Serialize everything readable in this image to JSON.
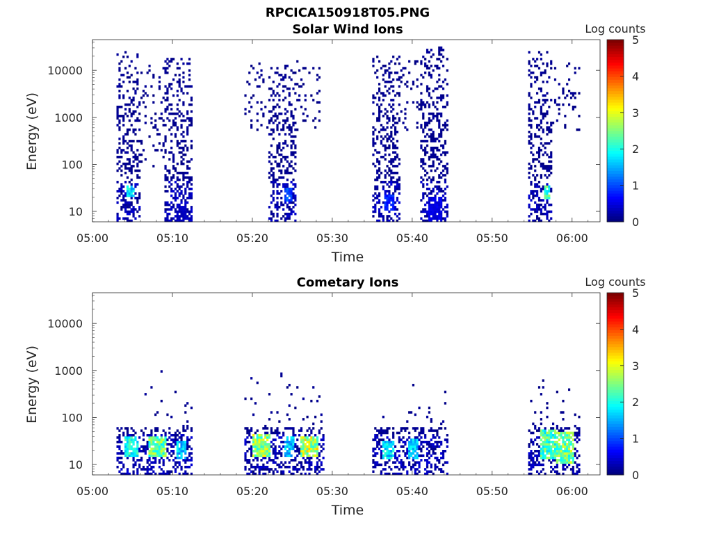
{
  "figure_title": "RPCICA150918T05.PNG",
  "chart_data": [
    {
      "type": "heatmap",
      "title": "Solar Wind Ions",
      "xlabel": "Time",
      "ylabel": "Energy (eV)",
      "x_ticks": [
        "05:00",
        "05:10",
        "05:20",
        "05:30",
        "05:40",
        "05:50",
        "06:00"
      ],
      "x_range_minutes": [
        0,
        63.5
      ],
      "y_scale": "log",
      "y_ticks": [
        "10",
        "100",
        "1000",
        "10000"
      ],
      "y_range": [
        6,
        45000
      ],
      "colorbar": {
        "label": "Log counts",
        "ticks": [
          "0",
          "1",
          "2",
          "3",
          "4",
          "5"
        ],
        "range": [
          0,
          5
        ],
        "colormap": "jet"
      },
      "bursts": [
        {
          "t_start": 3.0,
          "t_end": 6.0,
          "e_low": 6,
          "e_high": 25000,
          "core_low": 20,
          "core_high": 35,
          "core_peak": 2.2,
          "core_t": [
            4.2,
            5.0
          ]
        },
        {
          "t_start": 6.0,
          "t_end": 9.0,
          "e_low": 80,
          "e_high": 12000,
          "sparse": true
        },
        {
          "t_start": 9.0,
          "t_end": 12.5,
          "e_low": 6,
          "e_high": 18000,
          "core_low": 6,
          "core_high": 14,
          "core_peak": 0.4,
          "core_t": [
            10.5,
            11.5
          ]
        },
        {
          "t_start": 19.0,
          "t_end": 22.0,
          "e_low": 500,
          "e_high": 15000,
          "sparse": true
        },
        {
          "t_start": 22.0,
          "t_end": 25.5,
          "e_low": 6,
          "e_high": 13000,
          "core_low": 15,
          "core_high": 30,
          "core_peak": 1.2,
          "core_t": [
            24.0,
            24.8
          ]
        },
        {
          "t_start": 25.5,
          "t_end": 28.5,
          "e_low": 500,
          "e_high": 15000,
          "sparse": true
        },
        {
          "t_start": 35.0,
          "t_end": 38.5,
          "e_low": 6,
          "e_high": 20000,
          "core_low": 10,
          "core_high": 22,
          "core_peak": 1.0,
          "core_t": [
            36.5,
            37.5
          ]
        },
        {
          "t_start": 38.5,
          "t_end": 41.0,
          "e_low": 500,
          "e_high": 15000,
          "sparse": true
        },
        {
          "t_start": 41.0,
          "t_end": 44.5,
          "e_low": 6,
          "e_high": 35000,
          "core_low": 6,
          "core_high": 20,
          "core_peak": 0.6,
          "core_t": [
            42.0,
            43.5
          ]
        },
        {
          "t_start": 54.5,
          "t_end": 57.5,
          "e_low": 6,
          "e_high": 25000,
          "core_low": 18,
          "core_high": 35,
          "core_peak": 2.6,
          "core_t": [
            56.5,
            57.2
          ]
        },
        {
          "t_start": 57.5,
          "t_end": 61.0,
          "e_low": 500,
          "e_high": 15000,
          "sparse": true
        }
      ]
    },
    {
      "type": "heatmap",
      "title": "Cometary Ions",
      "xlabel": "Time",
      "ylabel": "Energy (eV)",
      "x_ticks": [
        "05:00",
        "05:10",
        "05:20",
        "05:30",
        "05:40",
        "05:50",
        "06:00"
      ],
      "x_range_minutes": [
        0,
        63.5
      ],
      "y_scale": "log",
      "y_ticks": [
        "10",
        "100",
        "1000",
        "10000"
      ],
      "y_range": [
        6,
        45000
      ],
      "colorbar": {
        "label": "Log counts",
        "ticks": [
          "0",
          "1",
          "2",
          "3",
          "4",
          "5"
        ],
        "range": [
          0,
          5
        ],
        "colormap": "jet"
      },
      "bursts": [
        {
          "t_start": 3.0,
          "t_end": 6.5,
          "e_low": 6,
          "e_high": 150,
          "core_low": 14,
          "core_high": 38,
          "core_peak": 2.4,
          "core_t": [
            3.8,
            5.5
          ]
        },
        {
          "t_start": 6.5,
          "t_end": 9.5,
          "e_low": 6,
          "e_high": 1300,
          "core_low": 14,
          "core_high": 38,
          "core_peak": 3.0,
          "core_t": [
            6.8,
            9.0
          ]
        },
        {
          "t_start": 9.5,
          "t_end": 12.5,
          "e_low": 6,
          "e_high": 1600,
          "core_low": 12,
          "core_high": 30,
          "core_peak": 2.0,
          "core_t": [
            10.5,
            11.5
          ]
        },
        {
          "t_start": 19.0,
          "t_end": 23.0,
          "e_low": 6,
          "e_high": 900,
          "core_low": 14,
          "core_high": 40,
          "core_peak": 3.2,
          "core_t": [
            19.8,
            22.0
          ]
        },
        {
          "t_start": 23.0,
          "t_end": 25.5,
          "e_low": 6,
          "e_high": 1500,
          "core_low": 14,
          "core_high": 38,
          "core_peak": 2.0,
          "core_t": [
            24.0,
            25.0
          ]
        },
        {
          "t_start": 25.5,
          "t_end": 29.0,
          "e_low": 6,
          "e_high": 1300,
          "core_low": 14,
          "core_high": 38,
          "core_peak": 3.4,
          "core_t": [
            26.0,
            28.0
          ]
        },
        {
          "t_start": 35.0,
          "t_end": 38.5,
          "e_low": 6,
          "e_high": 150,
          "core_low": 12,
          "core_high": 30,
          "core_peak": 2.2,
          "core_t": [
            36.2,
            37.5
          ]
        },
        {
          "t_start": 38.5,
          "t_end": 44.5,
          "e_low": 6,
          "e_high": 800,
          "core_low": 12,
          "core_high": 34,
          "core_peak": 2.0,
          "core_t": [
            39.5,
            40.5
          ]
        },
        {
          "t_start": 54.5,
          "t_end": 58.0,
          "e_low": 6,
          "e_high": 1000,
          "core_low": 12,
          "core_high": 50,
          "core_peak": 2.8,
          "core_t": [
            56.0,
            57.8
          ]
        },
        {
          "t_start": 58.0,
          "t_end": 61.0,
          "e_low": 6,
          "e_high": 1200,
          "core_low": 10,
          "core_high": 45,
          "core_peak": 3.0,
          "core_t": [
            58.0,
            60.0
          ]
        }
      ]
    }
  ]
}
